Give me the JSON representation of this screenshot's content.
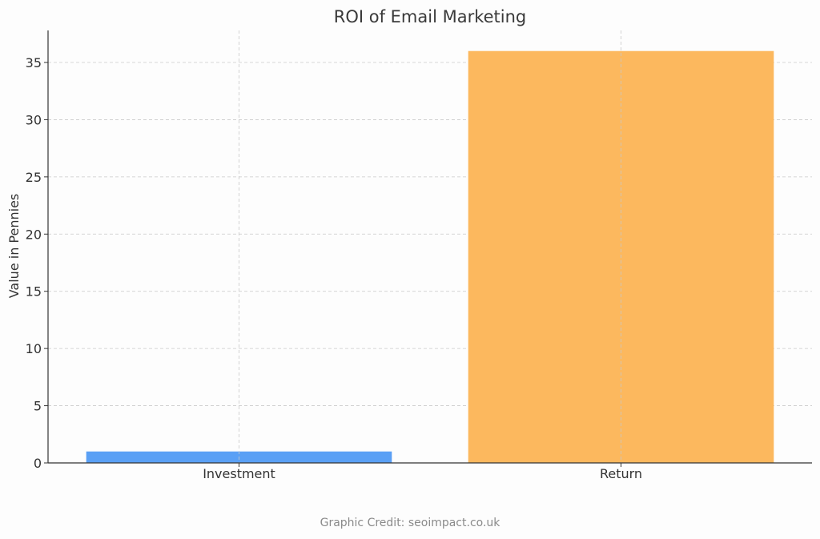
{
  "chart_data": {
    "type": "bar",
    "title": "ROI of Email Marketing",
    "xlabel": "",
    "ylabel": "Value in Pennies",
    "categories": [
      "Investment",
      "Return"
    ],
    "values": [
      1,
      36
    ],
    "colors": [
      "#5aa0f5",
      "#fcb85e"
    ],
    "ylim": [
      0,
      37.8
    ],
    "yticks": [
      0,
      5,
      10,
      15,
      20,
      25,
      30,
      35
    ],
    "grid": true,
    "legend": "none"
  },
  "footer": {
    "credit": "Graphic Credit: seoimpact.co.uk"
  }
}
